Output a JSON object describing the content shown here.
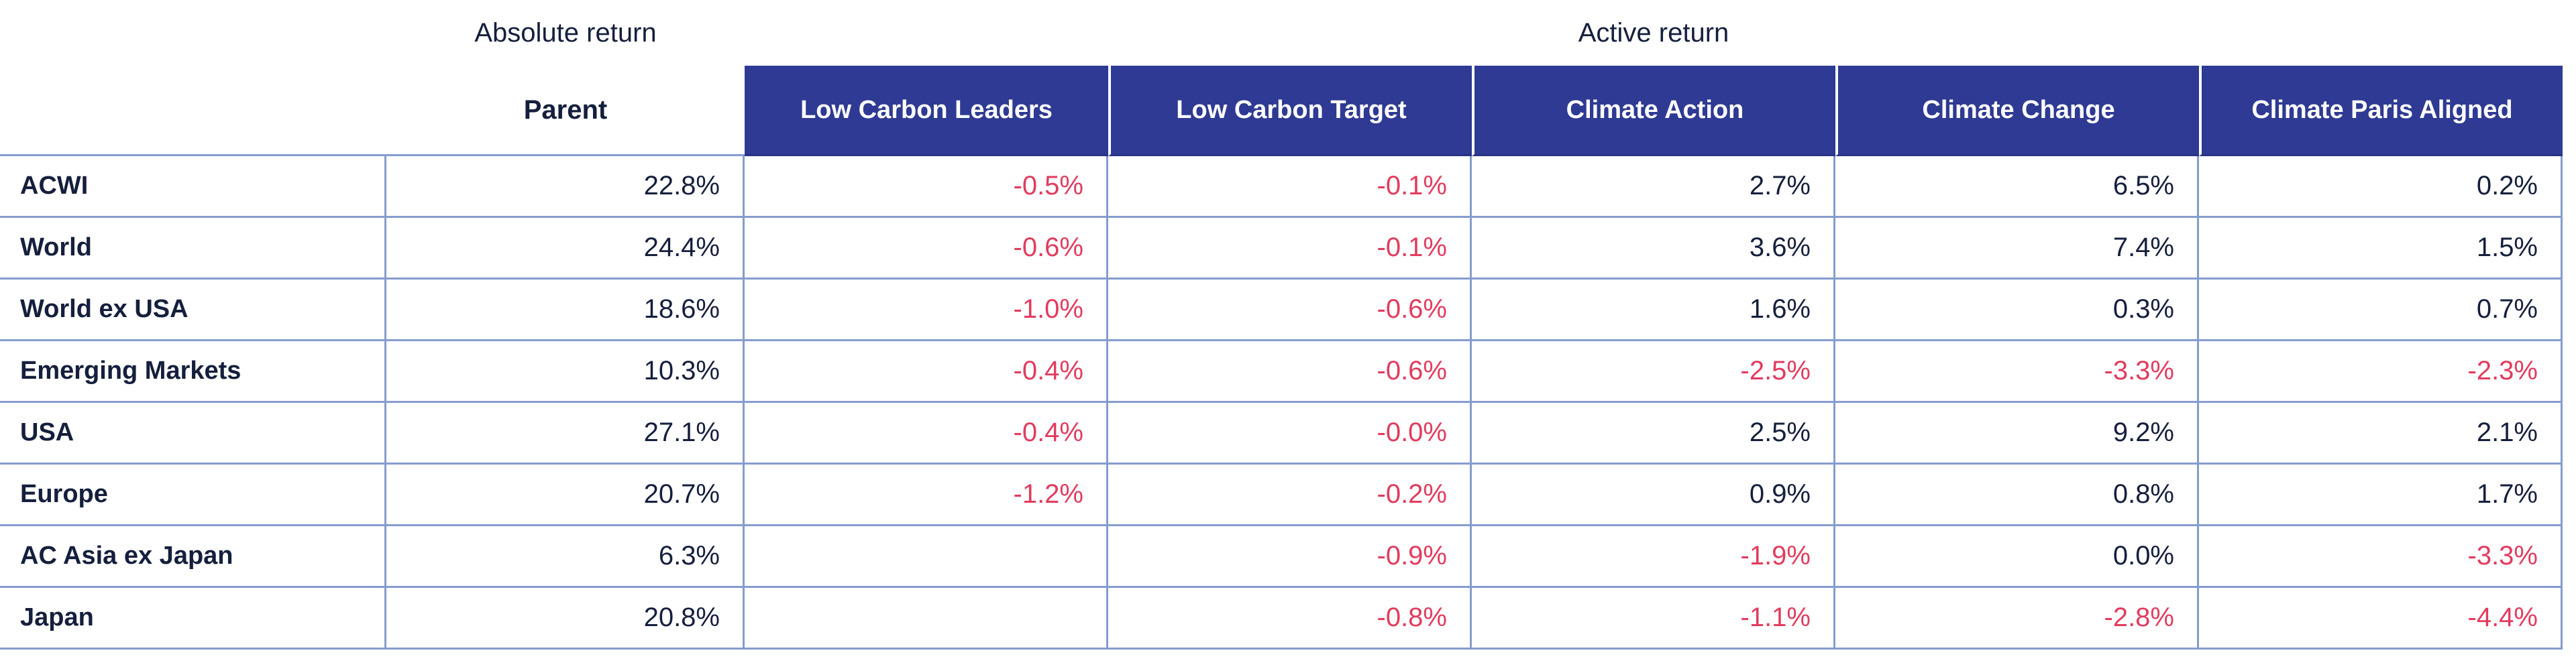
{
  "colors": {
    "header_bg": "#2E3A93",
    "text": "#151F3D",
    "negative": "#E23B5E",
    "grid": "#859CCE"
  },
  "chart_data": {
    "type": "table",
    "units": "%",
    "group_headers": {
      "absolute": "Absolute return",
      "active": "Active return"
    },
    "columns": [
      "Parent",
      "Low Carbon Leaders",
      "Low Carbon Target",
      "Climate Action",
      "Climate Change",
      "Climate Paris Aligned"
    ],
    "rows": [
      {
        "label": "ACWI",
        "values": [
          "22.8%",
          "-0.5%",
          "-0.1%",
          "2.7%",
          "6.5%",
          "0.2%"
        ]
      },
      {
        "label": "World",
        "values": [
          "24.4%",
          "-0.6%",
          "-0.1%",
          "3.6%",
          "7.4%",
          "1.5%"
        ]
      },
      {
        "label": "World ex USA",
        "values": [
          "18.6%",
          "-1.0%",
          "-0.6%",
          "1.6%",
          "0.3%",
          "0.7%"
        ]
      },
      {
        "label": "Emerging Markets",
        "values": [
          "10.3%",
          "-0.4%",
          "-0.6%",
          "-2.5%",
          "-3.3%",
          "-2.3%"
        ]
      },
      {
        "label": "USA",
        "values": [
          "27.1%",
          "-0.4%",
          "-0.0%",
          "2.5%",
          "9.2%",
          "2.1%"
        ]
      },
      {
        "label": "Europe",
        "values": [
          "20.7%",
          "-1.2%",
          "-0.2%",
          "0.9%",
          "0.8%",
          "1.7%"
        ]
      },
      {
        "label": "AC Asia ex Japan",
        "values": [
          "6.3%",
          "",
          "-0.9%",
          "-1.9%",
          "0.0%",
          "-3.3%"
        ]
      },
      {
        "label": "Japan",
        "values": [
          "20.8%",
          "",
          "-0.8%",
          "-1.1%",
          "-2.8%",
          "-4.4%"
        ]
      }
    ]
  }
}
